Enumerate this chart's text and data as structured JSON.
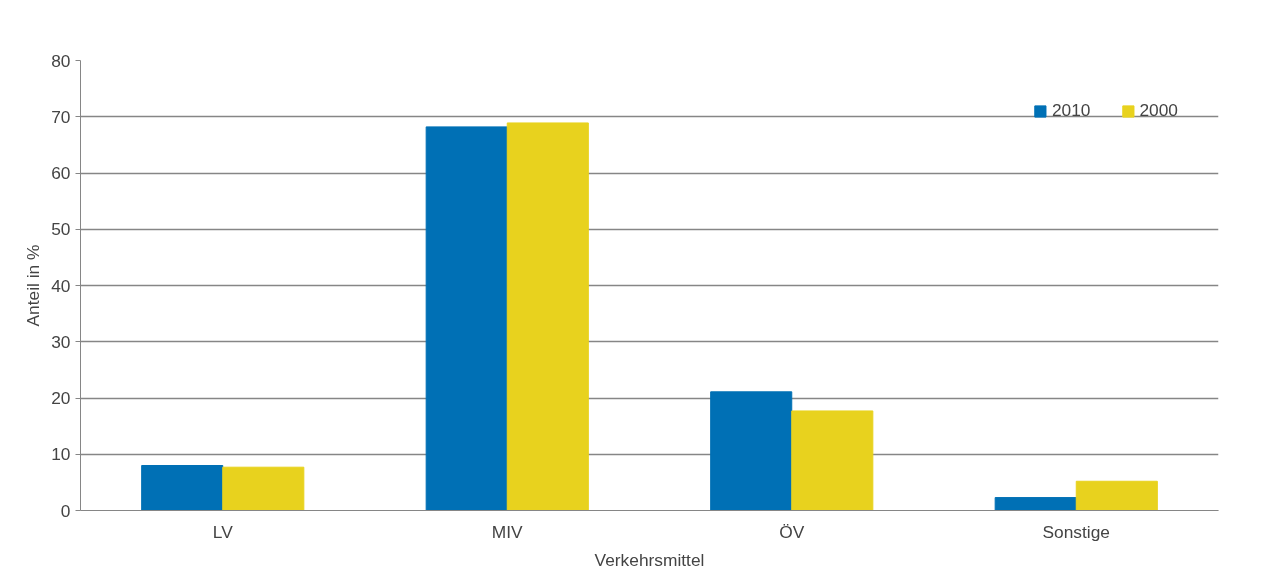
{
  "chart_data": {
    "type": "bar",
    "xlabel": "Verkehrsmittel",
    "ylabel": "Anteil in %",
    "categories": [
      "LV",
      "MIV",
      "ÖV",
      "Sonstige"
    ],
    "series": [
      {
        "name": "2010",
        "color": "#0070b5",
        "values": [
          8.0,
          68.2,
          21.1,
          2.3
        ]
      },
      {
        "name": "2000",
        "color": "#e8d21e",
        "values": [
          7.7,
          68.9,
          17.7,
          5.2
        ]
      }
    ],
    "ylim": [
      0,
      80
    ],
    "yticks": [
      0,
      10,
      20,
      30,
      40,
      50,
      60,
      70,
      80
    ],
    "grid": "y",
    "legend": "top right"
  }
}
